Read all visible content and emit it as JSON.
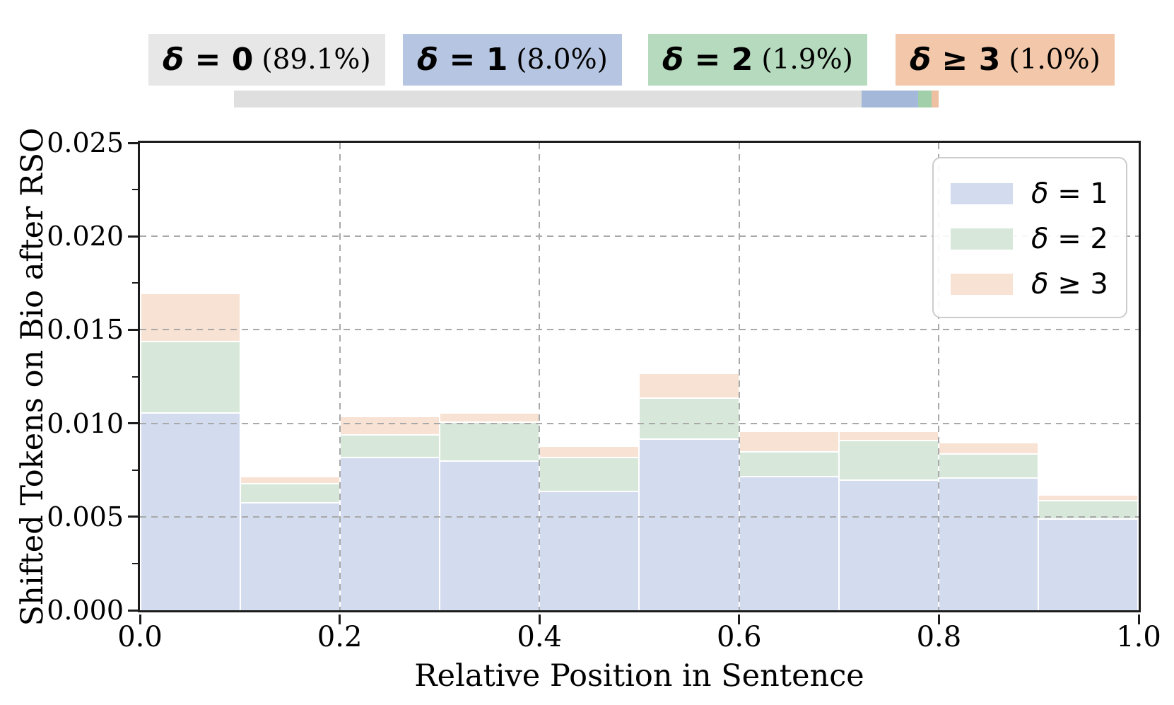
{
  "figure": {
    "background": "#ffffff"
  },
  "header_badges": [
    {
      "name": "delta-0",
      "label": "δ = 0",
      "pct": "(89.1%)",
      "color": "#e7e7e7"
    },
    {
      "name": "delta-1",
      "label": "δ = 1",
      "pct": "(8.0%)",
      "color": "#b6c5e1"
    },
    {
      "name": "delta-2",
      "label": "δ = 2",
      "pct": "(1.9%)",
      "color": "#b5dabd"
    },
    {
      "name": "delta-3plus",
      "label": "δ ≥ 3",
      "pct": "(1.0%)",
      "color": "#f2c7aa"
    }
  ],
  "proportion_bar": {
    "segments": [
      {
        "name": "delta-0",
        "pct": 89.1,
        "color": "#dfdfdf"
      },
      {
        "name": "delta-1",
        "pct": 8.0,
        "color": "#a4b8d9"
      },
      {
        "name": "delta-2",
        "pct": 1.9,
        "color": "#a1cfaa"
      },
      {
        "name": "delta-3plus",
        "pct": 1.0,
        "color": "#ecc0a0"
      }
    ]
  },
  "chart_data": {
    "type": "bar",
    "subtype": "stacked-histogram",
    "title": "",
    "xlabel": "Relative Position in Sentence",
    "ylabel": "Shifted Tokens on Bio after RSO",
    "xlim": [
      0.0,
      1.0
    ],
    "ylim": [
      0.0,
      0.025
    ],
    "x_ticks": [
      "0.0",
      "0.2",
      "0.4",
      "0.6",
      "0.8",
      "1.0"
    ],
    "y_ticks": [
      "0.000",
      "0.005",
      "0.010",
      "0.015",
      "0.020",
      "0.025"
    ],
    "bin_edges": [
      0.0,
      0.1,
      0.2,
      0.3,
      0.4,
      0.5,
      0.6,
      0.7,
      0.8,
      0.9,
      1.0
    ],
    "grid": {
      "horizontal_at": [
        0.005,
        0.01,
        0.015,
        0.02
      ],
      "vertical_at": [
        0.2,
        0.4,
        0.6,
        0.8
      ],
      "style": "dashed",
      "color": "#a9a9a9"
    },
    "series": [
      {
        "name": "δ = 1",
        "color": "#d3dcee",
        "values": [
          0.0106,
          0.0058,
          0.0082,
          0.008,
          0.0064,
          0.0092,
          0.0072,
          0.007,
          0.0071,
          0.0049
        ]
      },
      {
        "name": "δ = 2",
        "color": "#d7e8da",
        "values": [
          0.0038,
          0.001,
          0.0012,
          0.0021,
          0.0018,
          0.0022,
          0.0013,
          0.0021,
          0.0013,
          0.001
        ]
      },
      {
        "name": "δ ≥ 3",
        "color": "#f8e2d4",
        "values": [
          0.0026,
          0.0004,
          0.001,
          0.0005,
          0.0006,
          0.0013,
          0.0011,
          0.0005,
          0.0006,
          0.0003
        ]
      }
    ],
    "legend": {
      "position": "upper right",
      "entries": [
        "δ = 1",
        "δ = 2",
        "δ ≥ 3"
      ]
    }
  }
}
